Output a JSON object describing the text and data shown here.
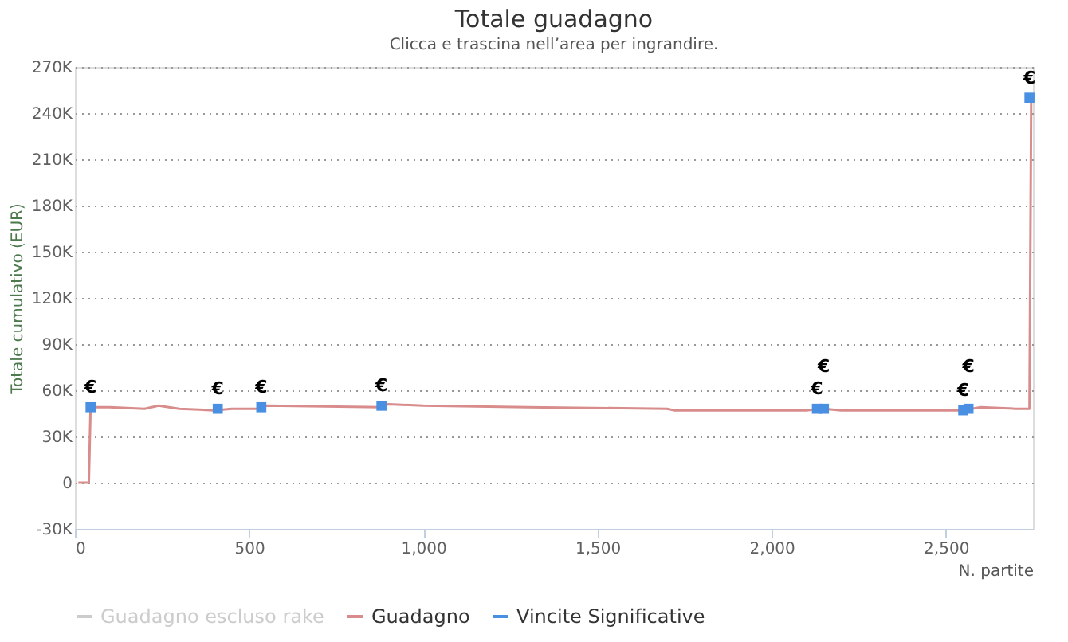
{
  "chart_data": {
    "type": "line",
    "title": "Totale guadagno",
    "subtitle": "Clicca e trascina nell’area per ingrandire.",
    "xlabel": "N. partite",
    "ylabel": "Totale cumulativo (EUR)",
    "xlim": [
      0,
      2750
    ],
    "xticks": [
      0,
      500,
      {
        "value": 1000,
        "label": "1,000"
      },
      {
        "value": 1500,
        "label": "1,500"
      },
      {
        "value": 2000,
        "label": "2,000"
      },
      {
        "value": 2500,
        "label": "2,500"
      }
    ],
    "ylim": [
      -30000,
      270000
    ],
    "yticks": [
      {
        "value": -30000,
        "label": "-30K"
      },
      0,
      {
        "value": 30000,
        "label": "30K"
      },
      {
        "value": 60000,
        "label": "60K"
      },
      {
        "value": 90000,
        "label": "90K"
      },
      {
        "value": 120000,
        "label": "120K"
      },
      {
        "value": 150000,
        "label": "150K"
      },
      {
        "value": 180000,
        "label": "180K"
      },
      {
        "value": 210000,
        "label": "210K"
      },
      {
        "value": 240000,
        "label": "240K"
      },
      {
        "value": 270000,
        "label": "270K"
      }
    ],
    "grid": "y",
    "legend": "bottom",
    "line_style": "solid",
    "marker": "none",
    "series": [
      {
        "name": "Guadagno escluso rake",
        "color": "#cccccc"
      },
      {
        "name": "Guadagno",
        "color": "#d98c8c",
        "x": [
          10,
          40,
          45,
          100,
          200,
          240,
          300,
          400,
          450,
          530,
          550,
          880,
          900,
          1000,
          1300,
          1700,
          1720,
          2100,
          2150,
          2200,
          2400,
          2550,
          2600,
          2700,
          2740,
          2745
        ],
        "values": [
          0,
          0,
          49000,
          49000,
          48000,
          50000,
          48000,
          47000,
          48000,
          48000,
          50000,
          49000,
          51000,
          50000,
          49000,
          48000,
          47000,
          47000,
          48000,
          47000,
          47000,
          47000,
          49000,
          48000,
          48000,
          250000
        ]
      },
      {
        "name": "Vincite Significative",
        "type": "scatter",
        "marker": "square",
        "color": "#4a90e2",
        "x": [
          45,
          410,
          535,
          880,
          2130,
          2150,
          2550,
          2565,
          2740
        ],
        "values": [
          49000,
          48000,
          49000,
          50000,
          48000,
          48000,
          47000,
          48000,
          250000
        ],
        "value_labels": [
          "€",
          "€",
          "€",
          "€",
          "€",
          "€",
          "€",
          "€",
          "€"
        ]
      }
    ]
  }
}
